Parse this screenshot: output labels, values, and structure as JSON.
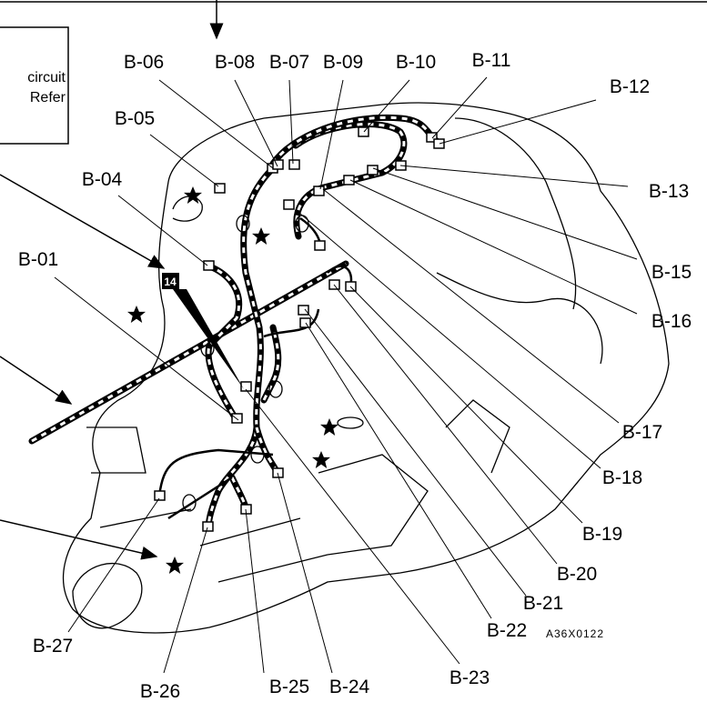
{
  "box_text": [
    "circuit",
    "Refer"
  ],
  "callout": "14",
  "labels": [
    "B-06",
    "B-08",
    "B-07",
    "B-09",
    "B-10",
    "B-11",
    "B-12",
    "B-05",
    "B-04",
    "B-13",
    "B-01",
    "B-15",
    "B-16",
    "B-17",
    "B-18",
    "B-19",
    "B-20",
    "B-21",
    "B-22",
    "B-23",
    "B-24",
    "B-25",
    "B-26",
    "B-27"
  ],
  "figure_code": "A36X0122"
}
